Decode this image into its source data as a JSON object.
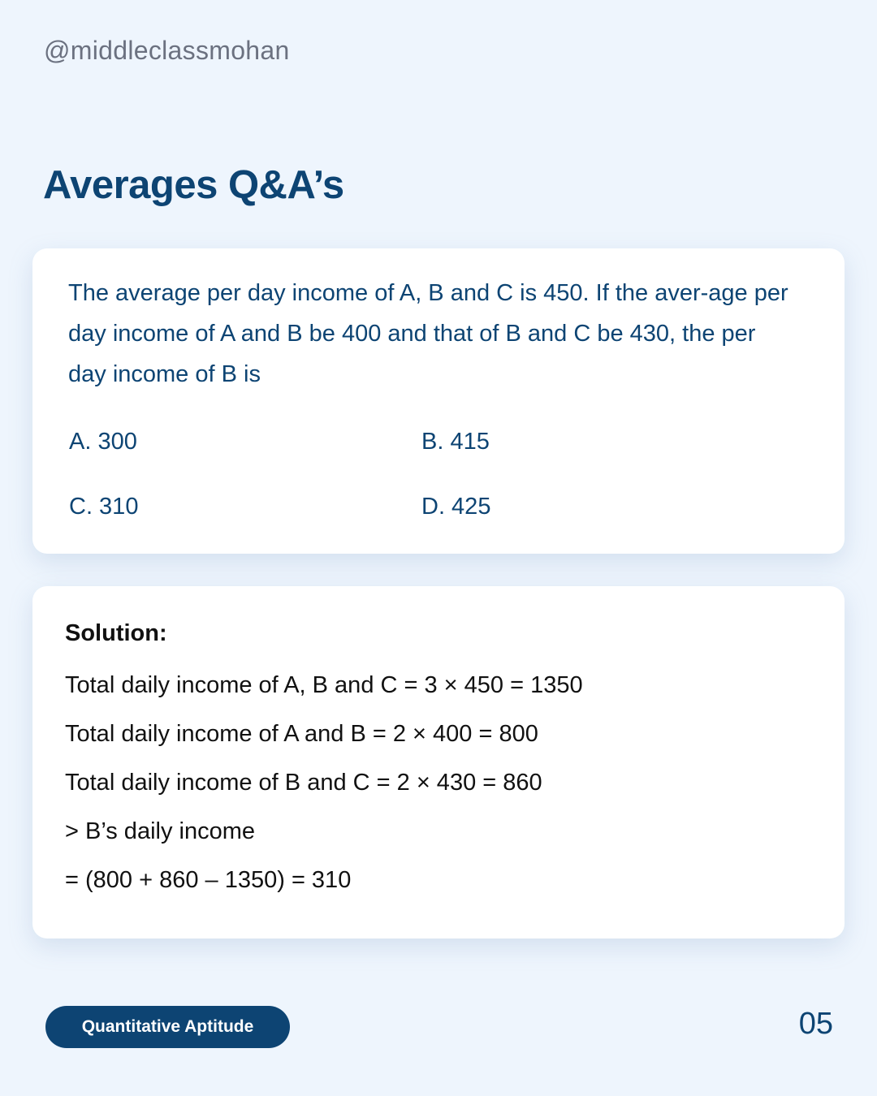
{
  "handle": "@middleclassmohan",
  "title": "Averages Q&A’s",
  "question": {
    "text": "The average per day income of A, B and C is 450. If the aver-age per day income of A and B be 400 and that of B and C be 430, the per day income of B is",
    "options": [
      {
        "label": "A. 300"
      },
      {
        "label": "B. 415"
      },
      {
        "label": "C. 310"
      },
      {
        "label": "D. 425"
      }
    ]
  },
  "solution": {
    "heading": "Solution:",
    "lines": [
      "Total daily income of A, B and C = 3 × 450 = 1350",
      "Total daily income of A and B = 2 × 400 = 800",
      "Total daily income of B and C = 2 × 430 = 860",
      "> B’s daily income",
      "= (800 + 860 – 1350) = 310"
    ]
  },
  "footer": {
    "category": "Quantitative Aptitude",
    "page_number": "05"
  }
}
